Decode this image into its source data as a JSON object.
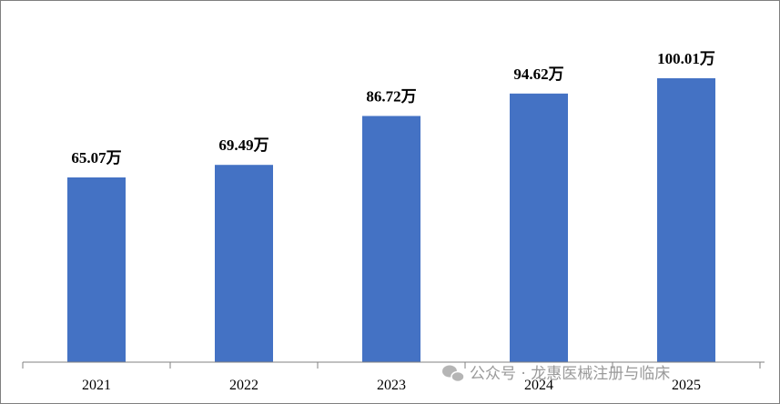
{
  "chart_data": {
    "type": "bar",
    "categories": [
      "2021",
      "2022",
      "2023",
      "2024",
      "2025"
    ],
    "values": [
      65.07,
      69.49,
      86.72,
      94.62,
      100.01
    ],
    "value_labels": [
      "65.07万",
      "69.49万",
      "86.72万",
      "94.62万",
      "100.01万"
    ],
    "color": "#4472c4"
  },
  "watermark": "公众号 · 龙惠医械注册与临床"
}
